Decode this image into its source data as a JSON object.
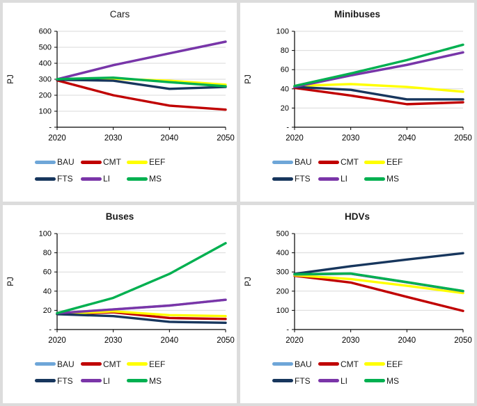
{
  "colors": {
    "BAU": "#6EA6D8",
    "CMT": "#C00000",
    "EEF": "#FFFF00",
    "FTS": "#17365D",
    "LI": "#7A35A8",
    "MS": "#00B050",
    "grid": "#D9D9D9",
    "axis": "#000000",
    "frame_background": "#DCDCDC",
    "panel_background": "#FFFFFF"
  },
  "chart_data": [
    {
      "type": "line",
      "title": "Cars",
      "title_bold": false,
      "ylabel": "PJ",
      "x": [
        "2020",
        "2030",
        "2040",
        "2050"
      ],
      "ylim": [
        0,
        600
      ],
      "ytick_step": 100,
      "yticks": [
        "-",
        "100",
        "200",
        "300",
        "400",
        "500",
        "600"
      ],
      "grid": true,
      "legend_position": "bottom",
      "legend_rows": [
        [
          "BAU",
          "CMT",
          "EEF"
        ],
        [
          "FTS",
          "LI",
          "MS"
        ]
      ],
      "series": [
        {
          "name": "BAU",
          "values": [
            300,
            388,
            462,
            535
          ]
        },
        {
          "name": "CMT",
          "values": [
            293,
            200,
            135,
            110
          ]
        },
        {
          "name": "EEF",
          "values": [
            300,
            303,
            291,
            266
          ]
        },
        {
          "name": "FTS",
          "values": [
            297,
            291,
            240,
            252
          ]
        },
        {
          "name": "LI",
          "values": [
            300,
            388,
            462,
            535
          ]
        },
        {
          "name": "MS",
          "values": [
            301,
            310,
            282,
            256
          ]
        }
      ]
    },
    {
      "type": "line",
      "title": "Minibuses",
      "title_bold": true,
      "ylabel": "PJ",
      "x": [
        "2020",
        "2030",
        "2040",
        "2050"
      ],
      "ylim": [
        0,
        100
      ],
      "ytick_step": 20,
      "yticks": [
        "-",
        "20",
        "40",
        "60",
        "80",
        "100"
      ],
      "grid": true,
      "legend_position": "bottom",
      "legend_rows": [
        [
          "BAU",
          "CMT",
          "EEF"
        ],
        [
          "FTS",
          "LI",
          "MS"
        ]
      ],
      "series": [
        {
          "name": "BAU",
          "values": [
            42,
            54,
            65,
            78
          ]
        },
        {
          "name": "CMT",
          "values": [
            41,
            33,
            24,
            26
          ]
        },
        {
          "name": "EEF",
          "values": [
            43,
            45,
            42,
            37
          ]
        },
        {
          "name": "FTS",
          "values": [
            42,
            39,
            29,
            29
          ]
        },
        {
          "name": "LI",
          "values": [
            42,
            54,
            65,
            78
          ]
        },
        {
          "name": "MS",
          "values": [
            43,
            56,
            70,
            86
          ]
        }
      ]
    },
    {
      "type": "line",
      "title": "Buses",
      "title_bold": true,
      "ylabel": "PJ",
      "x": [
        "2020",
        "2030",
        "2040",
        "2050"
      ],
      "ylim": [
        0,
        100
      ],
      "ytick_step": 20,
      "yticks": [
        "-",
        "20",
        "40",
        "60",
        "80",
        "100"
      ],
      "grid": true,
      "legend_position": "bottom",
      "legend_rows": [
        [
          "BAU",
          "CMT",
          "EEF"
        ],
        [
          "FTS",
          "LI",
          "MS"
        ]
      ],
      "series": [
        {
          "name": "BAU",
          "values": [
            17,
            21,
            25,
            31
          ]
        },
        {
          "name": "CMT",
          "values": [
            16,
            18,
            12,
            11
          ]
        },
        {
          "name": "EEF",
          "values": [
            16,
            19,
            15,
            14
          ]
        },
        {
          "name": "FTS",
          "values": [
            16,
            14,
            8,
            7
          ]
        },
        {
          "name": "LI",
          "values": [
            17,
            21,
            25,
            31
          ]
        },
        {
          "name": "MS",
          "values": [
            17,
            33,
            58,
            90
          ]
        }
      ]
    },
    {
      "type": "line",
      "title": "HDVs",
      "title_bold": true,
      "ylabel": "PJ",
      "x": [
        "2020",
        "2030",
        "2040",
        "2050"
      ],
      "ylim": [
        0,
        500
      ],
      "ytick_step": 100,
      "yticks": [
        "-",
        "100",
        "200",
        "300",
        "400",
        "500"
      ],
      "grid": true,
      "legend_position": "bottom",
      "legend_rows": [
        [
          "BAU",
          "CMT",
          "EEF"
        ],
        [
          "FTS",
          "LI",
          "MS"
        ]
      ],
      "series": [
        {
          "name": "BAU",
          "values": [
            287,
            291,
            246,
            200
          ]
        },
        {
          "name": "CMT",
          "values": [
            280,
            245,
            170,
            97
          ]
        },
        {
          "name": "EEF",
          "values": [
            283,
            263,
            228,
            190
          ]
        },
        {
          "name": "FTS",
          "values": [
            290,
            330,
            365,
            398
          ]
        },
        {
          "name": "LI",
          "values": [
            287,
            291,
            246,
            200
          ]
        },
        {
          "name": "MS",
          "values": [
            288,
            292,
            247,
            201
          ]
        }
      ]
    }
  ]
}
